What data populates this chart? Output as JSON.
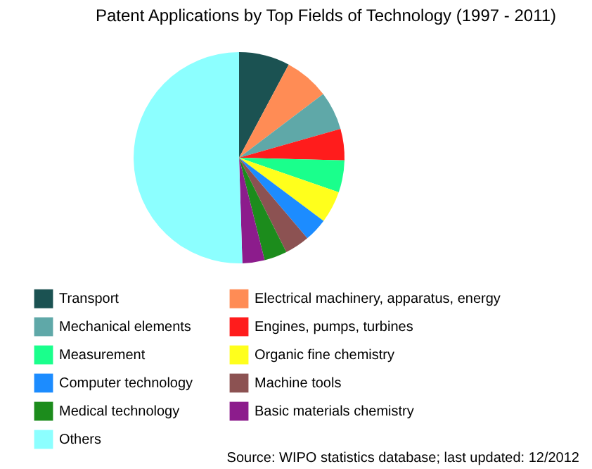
{
  "chart_data": {
    "type": "pie",
    "title": "Patent Applications by Top Fields of Technology (1997 - 2011)",
    "categories": [
      "Transport",
      "Electrical machinery, apparatus, energy",
      "Mechanical elements",
      "Engines, pumps, turbines",
      "Measurement",
      "Organic fine chemistry",
      "Computer technology",
      "Machine tools",
      "Medical technology",
      "Basic materials chemistry",
      "Others"
    ],
    "values": [
      7.8,
      6.9,
      5.9,
      4.8,
      4.9,
      4.9,
      3.6,
      3.8,
      3.5,
      3.4,
      50.5
    ],
    "colors": [
      "#1b5252",
      "#ff8c55",
      "#5fa8a8",
      "#ff1c1c",
      "#1aff8c",
      "#ffff1c",
      "#1c8cff",
      "#8c5252",
      "#1c8c1c",
      "#8c1c8c",
      "#8cffff"
    ],
    "legend": "bottom",
    "annotations": [
      "Source: WIPO statistics database; last updated: 12/2012"
    ]
  }
}
